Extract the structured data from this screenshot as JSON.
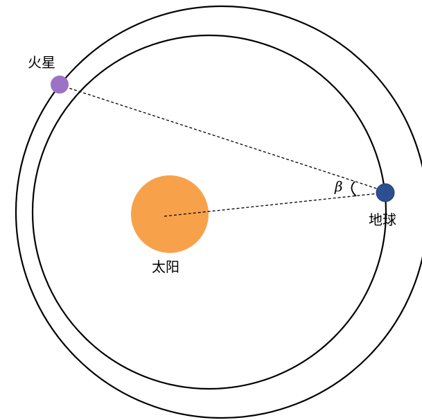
{
  "labels": {
    "mars": "火星",
    "earth": "地球",
    "sun": "太阳",
    "angle": "β"
  },
  "colors": {
    "sun": "#F7A24B",
    "mars": "#9B72C6",
    "earth": "#2D4F92",
    "orbit": "#000000",
    "line": "#000000"
  }
}
